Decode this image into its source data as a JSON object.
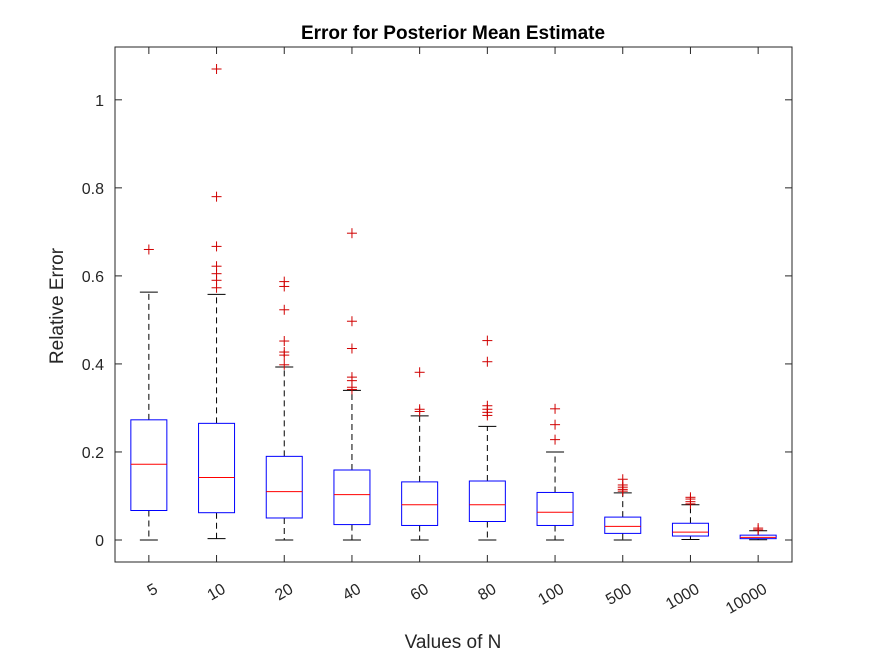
{
  "chart_data": {
    "type": "boxplot",
    "title": "Error for Posterior Mean Estimate",
    "xlabel": "Values of N",
    "ylabel": "Relative Error",
    "categories": [
      "5",
      "10",
      "20",
      "40",
      "60",
      "80",
      "100",
      "500",
      "1000",
      "10000"
    ],
    "ylim": [
      -0.05,
      1.12
    ],
    "yticks": [
      0,
      0.2,
      0.4,
      0.6,
      0.8,
      1
    ],
    "ytick_labels": [
      "0",
      "0.2",
      "0.4",
      "0.6",
      "0.8",
      "1"
    ],
    "grid": false,
    "x_tick_rotation": "slanted",
    "colors": {
      "box": "#0000ff",
      "median": "#ff0000",
      "whisker": "#000000",
      "outlier": "#d00000",
      "axes": "#262626"
    },
    "boxes": [
      {
        "category": "5",
        "min": 0.0,
        "q1": 0.067,
        "median": 0.172,
        "q3": 0.273,
        "max": 0.563,
        "outliers": [
          0.66
        ]
      },
      {
        "category": "10",
        "min": 0.003,
        "q1": 0.062,
        "median": 0.142,
        "q3": 0.265,
        "max": 0.558,
        "outliers": [
          0.573,
          0.59,
          0.605,
          0.622,
          0.667,
          0.78,
          1.07
        ]
      },
      {
        "category": "20",
        "min": 0.0,
        "q1": 0.05,
        "median": 0.11,
        "q3": 0.19,
        "max": 0.393,
        "outliers": [
          0.398,
          0.42,
          0.427,
          0.452,
          0.523,
          0.576,
          0.587
        ]
      },
      {
        "category": "40",
        "min": 0.0,
        "q1": 0.035,
        "median": 0.103,
        "q3": 0.159,
        "max": 0.34,
        "outliers": [
          0.342,
          0.347,
          0.362,
          0.37,
          0.435,
          0.497,
          0.697
        ]
      },
      {
        "category": "60",
        "min": 0.0,
        "q1": 0.033,
        "median": 0.08,
        "q3": 0.132,
        "max": 0.282,
        "outliers": [
          0.292,
          0.297,
          0.381
        ]
      },
      {
        "category": "80",
        "min": 0.0,
        "q1": 0.042,
        "median": 0.08,
        "q3": 0.134,
        "max": 0.258,
        "outliers": [
          0.283,
          0.29,
          0.297,
          0.305,
          0.405,
          0.453
        ]
      },
      {
        "category": "100",
        "min": 0.0,
        "q1": 0.033,
        "median": 0.063,
        "q3": 0.108,
        "max": 0.2,
        "outliers": [
          0.228,
          0.262,
          0.298
        ]
      },
      {
        "category": "500",
        "min": 0.0,
        "q1": 0.015,
        "median": 0.031,
        "q3": 0.052,
        "max": 0.107,
        "outliers": [
          0.111,
          0.115,
          0.12,
          0.125,
          0.138
        ]
      },
      {
        "category": "1000",
        "min": 0.001,
        "q1": 0.009,
        "median": 0.018,
        "q3": 0.038,
        "max": 0.08,
        "outliers": [
          0.082,
          0.087,
          0.093,
          0.097
        ]
      },
      {
        "category": "10000",
        "min": 0.0005,
        "q1": 0.003,
        "median": 0.006,
        "q3": 0.011,
        "max": 0.021,
        "outliers": [
          0.023,
          0.027
        ]
      }
    ]
  }
}
